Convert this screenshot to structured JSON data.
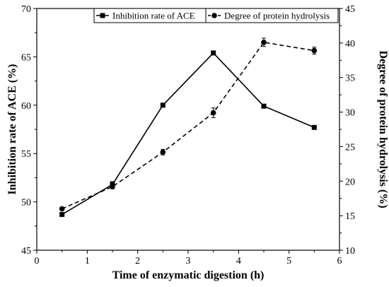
{
  "chart_data": {
    "type": "line",
    "xlabel": "Time of enzymatic digestion (h)",
    "xlim": [
      0,
      6
    ],
    "x_ticks": [
      0,
      1,
      2,
      3,
      4,
      5,
      6
    ],
    "ylabel_left": "Inhibition rate of ACE (%)",
    "ylim_left": [
      45,
      70
    ],
    "y_ticks_left": [
      45,
      50,
      55,
      60,
      65,
      70
    ],
    "ylabel_right": "Degree of protein hydrolysis (%)",
    "ylim_right": [
      10,
      45
    ],
    "y_ticks_right": [
      10,
      15,
      20,
      25,
      30,
      35,
      40,
      45
    ],
    "legend_position": "top",
    "series": [
      {
        "name": "Inhibition rate of ACE",
        "axis": "left",
        "marker": "square",
        "line_style": "solid",
        "color": "#000000",
        "x": [
          0.5,
          1.5,
          2.5,
          3.5,
          4.5,
          5.5
        ],
        "values": [
          48.7,
          51.8,
          60.0,
          65.4,
          59.9,
          57.7
        ],
        "errors": [
          0,
          0.3,
          0,
          0,
          0,
          0
        ]
      },
      {
        "name": "Degree of protein hydrolysis",
        "axis": "right",
        "marker": "circle",
        "line_style": "dashed",
        "color": "#000000",
        "x": [
          0.5,
          1.5,
          2.5,
          3.5,
          4.5,
          5.5
        ],
        "values": [
          16.0,
          19.2,
          24.2,
          29.9,
          40.1,
          38.9
        ],
        "errors": [
          0.2,
          0.3,
          0.4,
          0.7,
          0.6,
          0.5
        ]
      }
    ]
  }
}
